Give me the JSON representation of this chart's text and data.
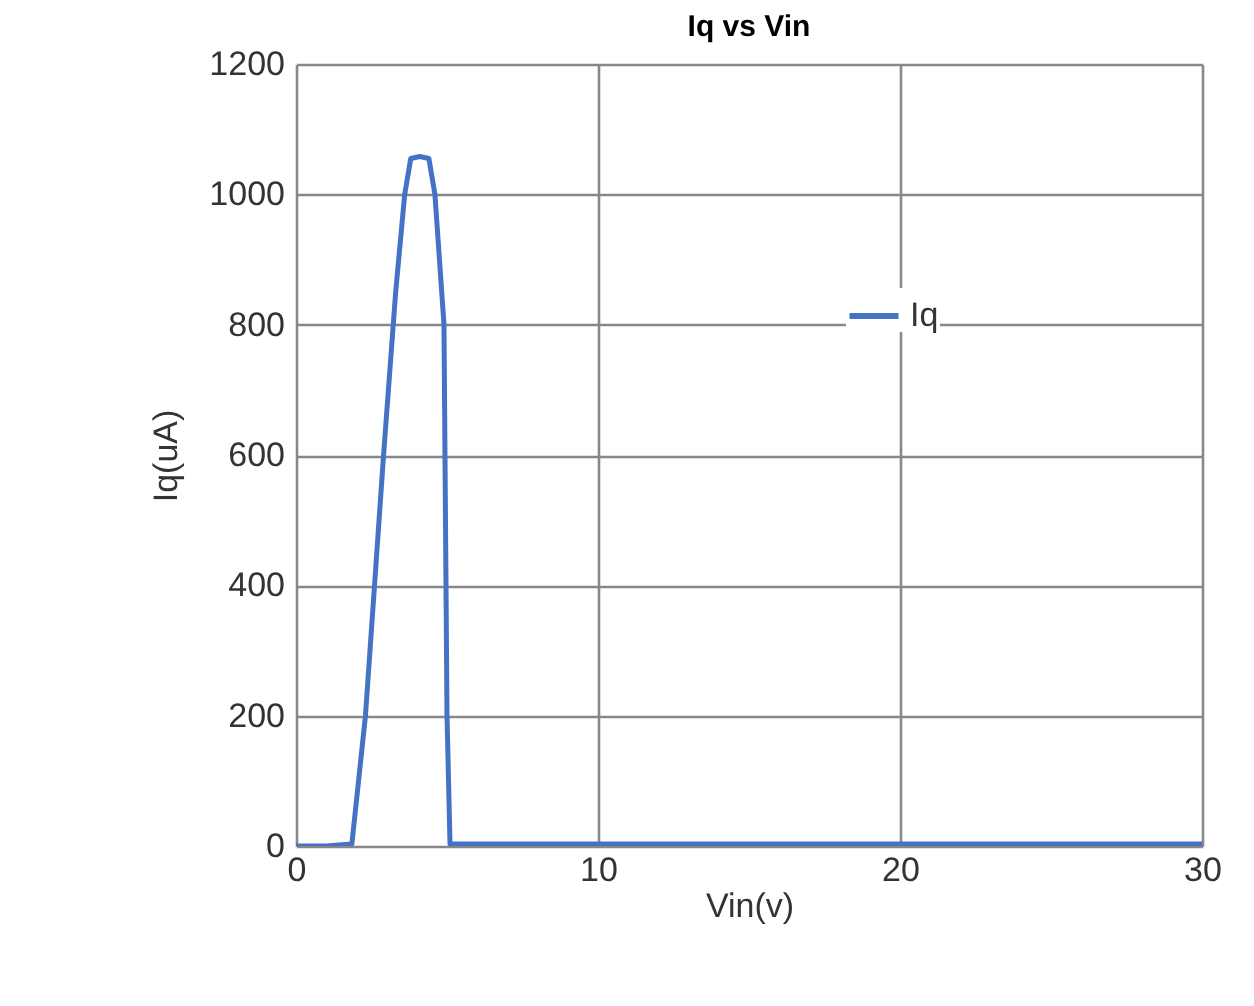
{
  "chart_data": {
    "type": "line",
    "title": "Iq vs Vin",
    "xlabel": "Vin(v)",
    "ylabel": "Iq(uA)",
    "xlim": [
      0,
      30
    ],
    "xticks": [
      0,
      10,
      20,
      30
    ],
    "ylim": [
      0,
      1200
    ],
    "yticks": [
      0,
      200,
      400,
      600,
      800,
      1000,
      1200
    ],
    "grid": true,
    "legend": "top right",
    "marker": "none",
    "line_style": "solid",
    "series": [
      {
        "name": "Iq",
        "color": "#4472c4",
        "x": [
          0,
          1,
          1.85,
          2.3,
          2.9,
          3.3,
          3.6,
          3.8,
          4.1,
          4.4,
          4.6,
          4.9,
          5.0,
          5.1,
          6,
          10,
          20,
          30
        ],
        "values": [
          0,
          0,
          3,
          200,
          600,
          850,
          1000,
          1055,
          1058,
          1055,
          1000,
          800,
          200,
          3,
          3,
          3,
          3,
          3
        ]
      }
    ]
  }
}
